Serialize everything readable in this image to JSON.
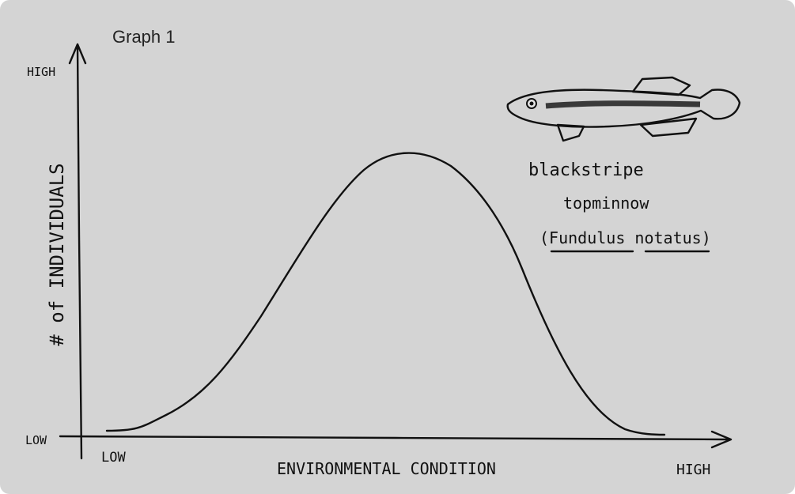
{
  "header": {
    "title": "Graph 1"
  },
  "axes": {
    "y": {
      "label": "# of INDIVIDUALS",
      "high": "HIGH",
      "low": "LOW"
    },
    "x": {
      "label": "ENVIRONMENTAL CONDITION",
      "low": "LOW",
      "high": "HIGH"
    }
  },
  "caption": {
    "lines": [
      "blackstripe",
      "topminnow",
      "(Fundulus notatus)"
    ]
  }
}
